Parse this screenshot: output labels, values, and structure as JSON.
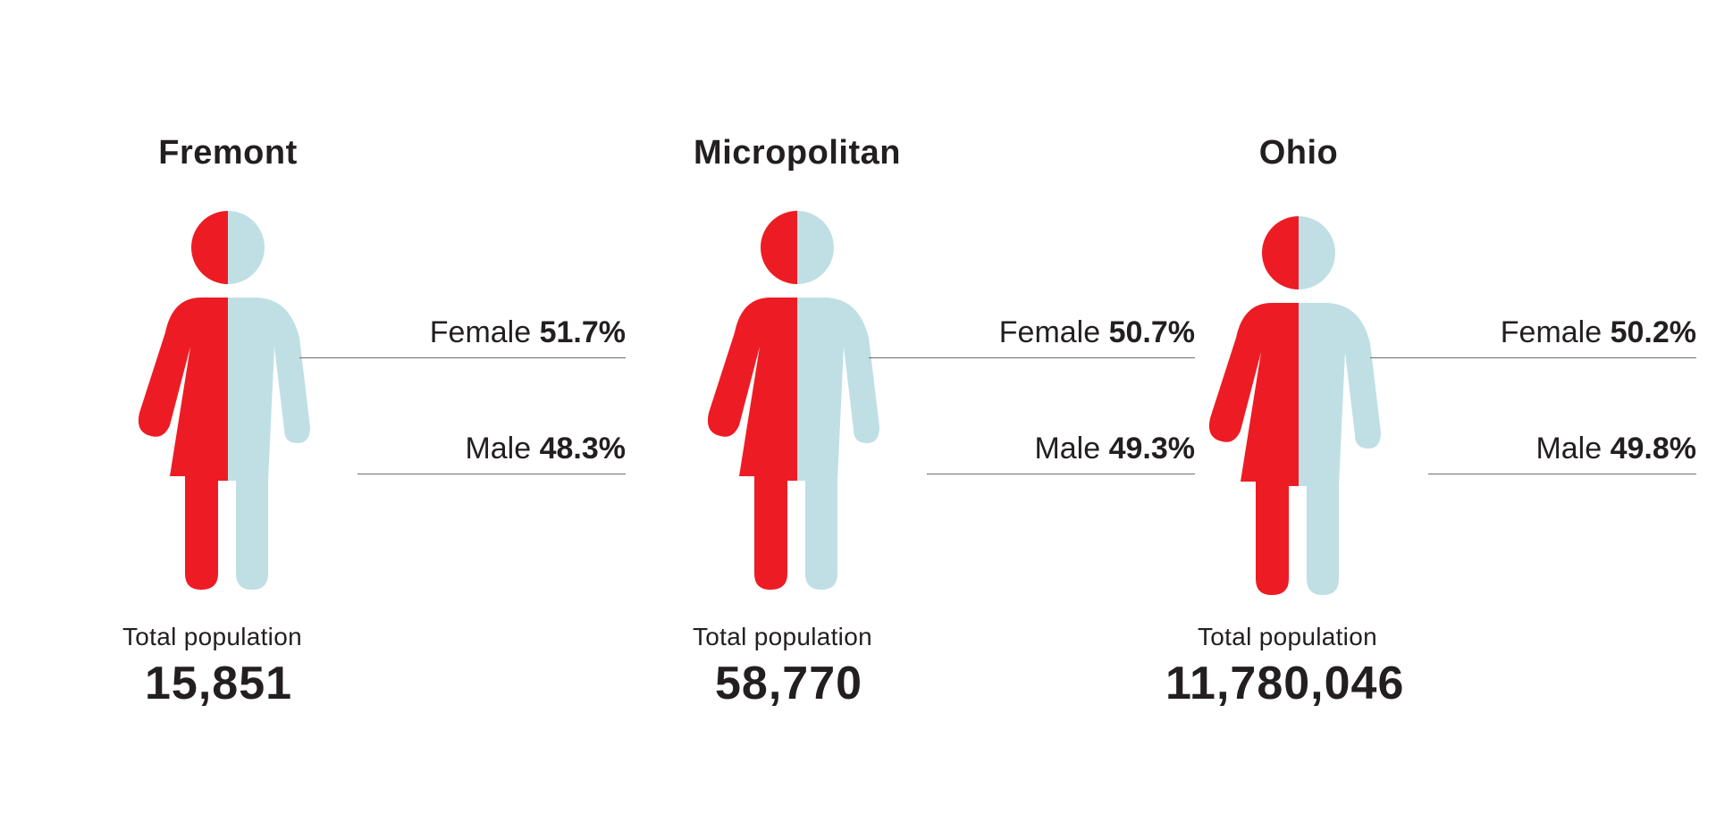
{
  "chart_data": {
    "type": "pictogram",
    "title": "",
    "colors": {
      "female": "#ed1c24",
      "male": "#bfdfe5",
      "leader": "#6d6e71",
      "text": "#231f20"
    },
    "categories": [
      "Fremont",
      "Micropolitan",
      "Ohio"
    ],
    "series": [
      {
        "name": "Female",
        "values": [
          51.7,
          50.7,
          50.2
        ]
      },
      {
        "name": "Male",
        "values": [
          48.3,
          49.3,
          49.8
        ]
      }
    ],
    "panels": [
      {
        "title": "Fremont",
        "female_label": "Female",
        "female_value": "51.7%",
        "male_label": "Male",
        "male_value": "48.3%",
        "total_label": "Total population",
        "total_value": "15,851"
      },
      {
        "title": "Micropolitan",
        "female_label": "Female",
        "female_value": "50.7%",
        "male_label": "Male",
        "male_value": "49.3%",
        "total_label": "Total population",
        "total_value": "58,770"
      },
      {
        "title": "Ohio",
        "female_label": "Female",
        "female_value": "50.2%",
        "male_label": "Male",
        "male_value": "49.8%",
        "total_label": "Total population",
        "total_value": "11,780,046"
      }
    ]
  }
}
